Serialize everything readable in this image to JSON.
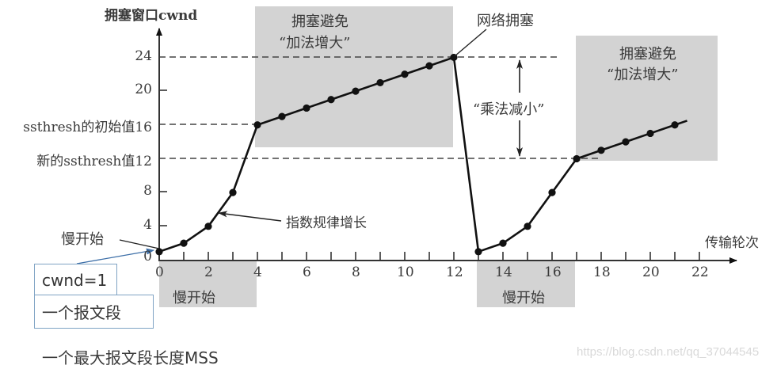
{
  "chart_data": {
    "type": "line",
    "title": "",
    "ylabel": "拥塞窗口cwnd",
    "xlabel": "传输轮次",
    "xlim": [
      0,
      23
    ],
    "ylim": [
      0,
      26
    ],
    "x_ticks": [
      0,
      2,
      4,
      6,
      8,
      10,
      12,
      14,
      16,
      18,
      20,
      22
    ],
    "y_ticks": [
      0,
      4,
      8,
      12,
      16,
      20,
      24
    ],
    "y_tick_labels": [
      "0",
      "4",
      "8",
      "新的ssthresh值12",
      "ssthresh的初始值16",
      "20",
      "24"
    ],
    "series": [
      {
        "name": "cwnd",
        "x": [
          0,
          1,
          2,
          3,
          4,
          5,
          6,
          7,
          8,
          9,
          10,
          11,
          12,
          13,
          14,
          15,
          16,
          17,
          18,
          19,
          20,
          21
        ],
        "values": [
          1,
          2,
          4,
          8,
          16,
          17,
          18,
          19,
          20,
          21,
          22,
          23,
          24,
          1,
          2,
          4,
          8,
          12,
          13,
          14,
          15,
          16
        ]
      }
    ],
    "reference_lines": [
      {
        "y": 24,
        "style": "dashed",
        "x_range": [
          0,
          16.5
        ]
      },
      {
        "y": 16,
        "style": "dashed",
        "x_range": [
          0,
          4
        ]
      },
      {
        "y": 12,
        "style": "dashed",
        "x_range": [
          0,
          17.5
        ]
      }
    ],
    "shaded_regions": [
      {
        "label": "拥塞避免 “加法增大”",
        "x_range": [
          4,
          12
        ],
        "y_range": [
          13.5,
          29.5
        ]
      },
      {
        "label": "拥塞避免 “加法增大”",
        "x_range": [
          17,
          23.3
        ],
        "y_range": [
          11.6,
          24.5
        ]
      },
      {
        "label": "慢开始",
        "x_range": [
          0,
          4
        ],
        "y_range": "below-axis"
      },
      {
        "label": "慢开始",
        "x_range": [
          13,
          17
        ],
        "y_range": "below-axis"
      }
    ],
    "annotations": [
      "网络拥塞",
      "“乘法减小”",
      "指数规律增长",
      "慢开始",
      "cwnd=1",
      "一个报文段",
      "一个最大报文段长度MSS"
    ],
    "grid": false,
    "legend": null
  },
  "axes": {
    "y_title": "拥塞窗口cwnd",
    "x_title": "传输轮次",
    "x_tick_labels": [
      "0",
      "2",
      "4",
      "6",
      "8",
      "10",
      "12",
      "14",
      "16",
      "18",
      "20",
      "22"
    ],
    "y_tick_labels": {
      "y24": "24",
      "y20": "20",
      "y16": "ssthresh的初始值16",
      "y12": "新的ssthresh值12",
      "y8": "8",
      "y4": "4",
      "y0": "0"
    }
  },
  "regions": {
    "ca1_line1": "拥塞避免",
    "ca1_line2": "“加法增大”",
    "ca2_line1": "拥塞避免",
    "ca2_line2": "“加法增大”",
    "ss1": "慢开始",
    "ss2": "慢开始"
  },
  "annotations": {
    "congestion": "网络拥塞",
    "mult_decrease": "“乘法减小”",
    "exp_growth": "指数规律增长",
    "slow_start": "慢开始"
  },
  "notes": {
    "cwnd_box": "cwnd=1",
    "segment_box": "一个报文段",
    "mss_text": "一个最大报文段长度MSS"
  },
  "watermark": "https://blog.csdn.net/qq_37044545",
  "colors": {
    "shade": "#d3d3d3",
    "line": "#111111",
    "dash": "#444444",
    "note_border": "#7fa3c4",
    "note_arrow": "#3d6fa8"
  }
}
